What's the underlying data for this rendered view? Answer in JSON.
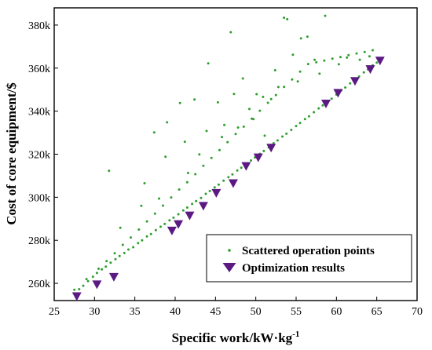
{
  "chart_data": {
    "type": "scatter",
    "xlabel_main": "Specific work/kW·kg",
    "xlabel_sup": "-1",
    "ylabel": "Cost of core equipment/$",
    "xlim": [
      25,
      70
    ],
    "ylim": [
      252000,
      388000
    ],
    "x_ticks": [
      25,
      30,
      35,
      40,
      45,
      50,
      55,
      60,
      65,
      70
    ],
    "x_tick_labels": [
      "25",
      "30",
      "35",
      "40",
      "45",
      "50",
      "55",
      "60",
      "65",
      "70"
    ],
    "y_ticks": [
      260000,
      280000,
      300000,
      320000,
      340000,
      360000,
      380000
    ],
    "y_tick_labels": [
      "260k",
      "280k",
      "300k",
      "320k",
      "340k",
      "360k",
      "380k"
    ],
    "legend_position": "bottom-right",
    "series": [
      {
        "name": "Scattered operation points",
        "marker": "dot",
        "color": "#2e9e2e",
        "x": [
          27.5,
          28.1,
          28.6,
          29.2,
          29.8,
          30.3,
          30.9,
          31.4,
          32.0,
          32.6,
          33.1,
          33.7,
          34.2,
          34.8,
          35.4,
          35.9,
          36.5,
          37.0,
          37.6,
          38.2,
          38.7,
          39.3,
          39.8,
          40.4,
          41.0,
          41.5,
          42.1,
          42.6,
          43.2,
          43.8,
          44.3,
          44.9,
          45.4,
          46.0,
          46.6,
          47.1,
          47.7,
          48.2,
          48.8,
          49.4,
          49.9,
          50.5,
          51.0,
          51.6,
          52.2,
          52.7,
          53.3,
          53.8,
          54.4,
          55.0,
          55.5,
          56.1,
          56.6,
          57.2,
          57.8,
          58.3,
          58.9,
          59.4,
          60.0,
          60.6,
          61.1,
          61.7,
          62.2,
          62.8,
          63.4,
          63.9,
          64.5,
          65.0,
          29.0,
          30.5,
          31.5,
          32.5,
          33.5,
          34.5,
          35.5,
          36.5,
          37.5,
          38.5,
          39.5,
          40.5,
          41.5,
          42.5,
          43.5,
          44.5,
          45.5,
          46.5,
          47.5,
          48.5,
          49.5,
          50.5,
          51.5,
          52.5,
          53.5,
          54.5,
          55.5,
          56.5,
          57.5,
          58.5,
          59.5,
          60.5,
          61.5,
          62.5,
          63.5,
          64.5,
          31.8,
          37.4,
          39.0,
          40.6,
          41.2,
          42.4,
          43.0,
          44.1,
          45.3,
          46.1,
          46.9,
          47.3,
          48.4,
          49.2,
          50.1,
          51.1,
          51.9,
          52.4,
          53.5,
          53.9,
          54.6,
          55.6,
          56.4,
          57.3,
          58.6,
          36.2,
          38.8,
          45.8,
          49.7,
          52.8,
          38.0,
          41.6,
          43.9,
          47.8,
          50.9,
          55.2,
          57.9,
          61.3,
          33.2,
          35.8,
          60.3,
          62.9,
          64.1
        ],
        "y": [
          257000,
          257300,
          258900,
          261000,
          263100,
          264800,
          266500,
          267800,
          269600,
          271200,
          272700,
          274100,
          275700,
          276800,
          278700,
          280000,
          281800,
          282900,
          284700,
          286300,
          287600,
          289300,
          290500,
          292100,
          293900,
          295200,
          296900,
          298200,
          299700,
          301600,
          302900,
          304600,
          305900,
          307700,
          309300,
          310600,
          312400,
          313700,
          315300,
          317100,
          318500,
          320200,
          321500,
          323200,
          325100,
          326400,
          328200,
          329500,
          331300,
          333100,
          334500,
          336300,
          337600,
          339500,
          341300,
          342700,
          344500,
          345800,
          347700,
          349600,
          351000,
          352900,
          354200,
          356100,
          358000,
          359400,
          361300,
          362600,
          262000,
          266800,
          270300,
          274000,
          277900,
          281300,
          285000,
          288800,
          292400,
          296100,
          299900,
          303600,
          307000,
          310700,
          314600,
          318300,
          321900,
          325600,
          329400,
          332800,
          336500,
          340200,
          343900,
          347500,
          351300,
          354700,
          358400,
          361900,
          362700,
          363500,
          364400,
          365100,
          366000,
          366800,
          367500,
          368300,
          312300,
          330100,
          334800,
          343800,
          325800,
          345400,
          319900,
          362200,
          344100,
          333600,
          376700,
          348000,
          355200,
          341000,
          347900,
          328600,
          345600,
          359000,
          383400,
          382700,
          366200,
          373800,
          374600,
          363900,
          384300,
          306500,
          318800,
          328000,
          336300,
          351200,
          299400,
          311300,
          330800,
          332400,
          346600,
          353800,
          357400,
          364900,
          285800,
          296000,
          361800,
          363900,
          365500
        ]
      },
      {
        "name": "Optimization results",
        "marker": "triangle-down",
        "color": "#5b1a82",
        "x": [
          27.8,
          30.3,
          32.4,
          39.6,
          40.4,
          41.8,
          43.5,
          45.1,
          47.2,
          48.8,
          50.3,
          51.9,
          58.7,
          60.2,
          62.3,
          64.2,
          65.4
        ],
        "y": [
          254000,
          259500,
          263000,
          284500,
          287500,
          291500,
          296000,
          302000,
          306500,
          314500,
          318500,
          323000,
          343500,
          348500,
          354000,
          359500,
          363500
        ]
      }
    ]
  }
}
